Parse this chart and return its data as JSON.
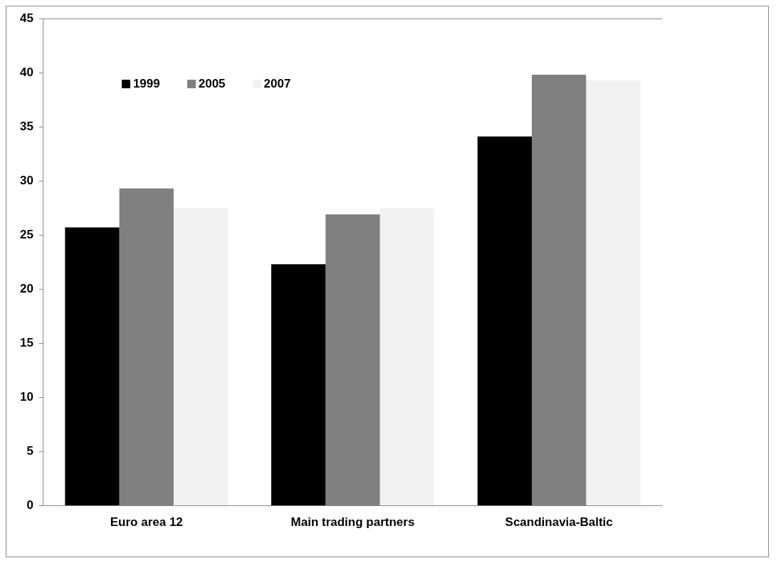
{
  "chart_data": {
    "type": "bar",
    "categories": [
      "Euro area 12",
      "Main trading partners",
      "Scandinavia-Baltic"
    ],
    "series": [
      {
        "name": "1999",
        "color": "#000000",
        "values": [
          25.7,
          22.3,
          34.1
        ]
      },
      {
        "name": "2005",
        "color": "#808080",
        "values": [
          29.3,
          26.9,
          39.8
        ]
      },
      {
        "name": "2007",
        "color": "#f2f2f2",
        "values": [
          27.5,
          27.5,
          39.3
        ]
      }
    ],
    "ylim": [
      0,
      45
    ],
    "yticks": [
      0,
      5,
      10,
      15,
      20,
      25,
      30,
      35,
      40,
      45
    ],
    "grid": false,
    "legend": "top left"
  }
}
